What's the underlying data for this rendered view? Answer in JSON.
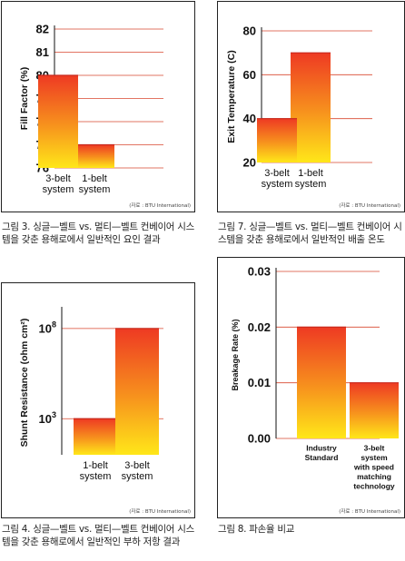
{
  "source_note": "(자료 : BTU International)",
  "chart_data": [
    {
      "type": "bar",
      "ylabel": "Fill Factor (%)",
      "categories": [
        "1-belt\nsystem",
        "3-belt\nsystem"
      ],
      "values": [
        77,
        80
      ],
      "ylim": [
        76,
        82
      ],
      "yticks": [
        76,
        77,
        78,
        79,
        80,
        81,
        82
      ],
      "grid": true,
      "caption": "그림 3. 싱글—벨트 vs. 멀티—벨트 컨베이어 시스템을 갖춘 용해로에서 일반적인 요인 결과"
    },
    {
      "type": "bar",
      "ylabel": "Exit Temperature (C)",
      "categories": [
        "1-belt\nsystem",
        "3-belt\nsystem"
      ],
      "values": [
        70,
        40
      ],
      "ylim": [
        20,
        80
      ],
      "yticks": [
        20,
        40,
        60,
        80
      ],
      "grid": true,
      "caption": "그림 7. 싱글—벨트 vs. 멀티—벨트 컨베이어 시스템을 갖춘 용해로에서 일반적인 배출 온도"
    },
    {
      "type": "bar",
      "ylabel": "Shunt Resistance (ohm cm²)",
      "scale": "log",
      "categories": [
        "1-belt\nsystem",
        "3-belt\nsystem"
      ],
      "values": [
        1000,
        100000000
      ],
      "yticks": [
        1000,
        100000000
      ],
      "ytick_labels": [
        [
          "10",
          "3"
        ],
        [
          "10",
          "8"
        ]
      ],
      "grid": true,
      "caption": "그림 4. 싱글—벨트 vs. 멀티—벨트 컨베이어 시스템을 갖춘 용해로에서 일반적인 부하 저항 결과"
    },
    {
      "type": "bar",
      "ylabel": "Breakage Rate (%)",
      "categories": [
        "Industry\nStandard",
        "3-belt\nsystem\nwith speed\nmatching\ntechnology"
      ],
      "values": [
        0.02,
        0.01
      ],
      "ylim": [
        0,
        0.03
      ],
      "yticks": [
        0.0,
        0.01,
        0.02,
        0.03
      ],
      "ytick_labels": [
        "0.00",
        "0.01",
        "0.02",
        "0.03"
      ],
      "grid": true,
      "caption": "그림 8. 파손율 비교"
    }
  ]
}
